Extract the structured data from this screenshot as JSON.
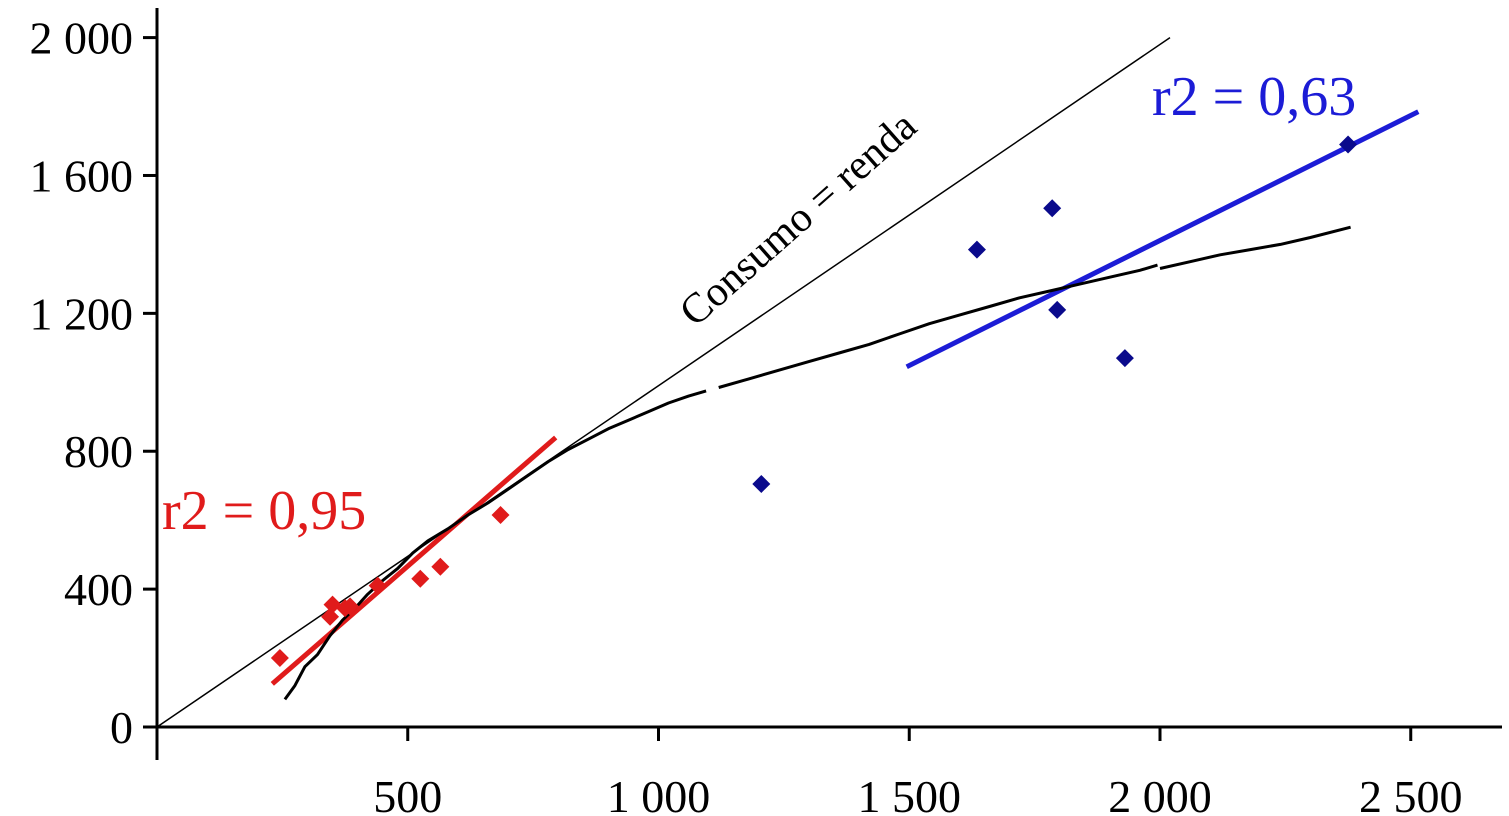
{
  "chart_data": {
    "type": "scatter",
    "title": "",
    "xlabel": "",
    "ylabel": "",
    "xlim": [
      0,
      2600
    ],
    "ylim": [
      0,
      2000
    ],
    "x_ticks": [
      500,
      1000,
      1500,
      2000,
      2500
    ],
    "x_tick_labels": [
      "500",
      "1 000",
      "1 500",
      "2 000",
      "2 500"
    ],
    "y_ticks": [
      0,
      400,
      800,
      1200,
      1600,
      2000
    ],
    "y_tick_labels": [
      "0",
      "400",
      "800",
      "1 200",
      "1 600",
      "2 000"
    ],
    "grid": false,
    "colors": {
      "red": "#e01b1b",
      "blue": "#1c1cd6",
      "navy": "#0a0a8c",
      "black": "#000000"
    },
    "series": [
      {
        "color": "#e01b1b",
        "marker": "diamond",
        "points": [
          [
            245,
            200
          ],
          [
            345,
            320
          ],
          [
            350,
            355
          ],
          [
            375,
            345
          ],
          [
            385,
            350
          ],
          [
            440,
            410
          ],
          [
            525,
            430
          ],
          [
            565,
            465
          ],
          [
            685,
            615
          ]
        ]
      },
      {
        "color": "#0a0a8c",
        "marker": "diamond",
        "points": [
          [
            1205,
            705
          ],
          [
            1635,
            1385
          ],
          [
            1785,
            1505
          ],
          [
            1795,
            1210
          ],
          [
            1930,
            1070
          ],
          [
            2375,
            1690
          ]
        ]
      }
    ],
    "lines": [
      {
        "name": "identity",
        "color": "#000000",
        "width": 1.5,
        "points": [
          [
            0,
            0
          ],
          [
            2020,
            2000
          ]
        ]
      },
      {
        "name": "fit-red",
        "color": "#e01b1b",
        "width": 5,
        "points": [
          [
            230,
            125
          ],
          [
            795,
            840
          ]
        ]
      },
      {
        "name": "fit-blue",
        "color": "#1c1cd6",
        "width": 5,
        "points": [
          [
            1495,
            1045
          ],
          [
            2515,
            1785
          ]
        ]
      },
      {
        "name": "curve-1",
        "color": "#000000",
        "width": 3,
        "points": [
          [
            255,
            80
          ],
          [
            275,
            120
          ],
          [
            295,
            175
          ],
          [
            320,
            210
          ],
          [
            345,
            265
          ],
          [
            370,
            310
          ],
          [
            395,
            345
          ],
          [
            420,
            385
          ],
          [
            450,
            425
          ],
          [
            480,
            460
          ],
          [
            510,
            505
          ],
          [
            540,
            540
          ],
          [
            580,
            575
          ],
          [
            620,
            615
          ],
          [
            660,
            650
          ],
          [
            700,
            690
          ],
          [
            740,
            730
          ],
          [
            780,
            770
          ],
          [
            820,
            805
          ],
          [
            860,
            835
          ],
          [
            900,
            865
          ],
          [
            940,
            890
          ],
          [
            980,
            915
          ],
          [
            1020,
            940
          ],
          [
            1060,
            960
          ],
          [
            1095,
            975
          ]
        ]
      },
      {
        "name": "curve-2",
        "color": "#000000",
        "width": 3,
        "points": [
          [
            1120,
            985
          ],
          [
            1180,
            1010
          ],
          [
            1240,
            1035
          ],
          [
            1300,
            1060
          ],
          [
            1360,
            1085
          ],
          [
            1420,
            1110
          ],
          [
            1480,
            1140
          ],
          [
            1540,
            1170
          ],
          [
            1600,
            1195
          ],
          [
            1660,
            1220
          ],
          [
            1720,
            1245
          ],
          [
            1780,
            1265
          ],
          [
            1840,
            1285
          ],
          [
            1900,
            1305
          ],
          [
            1960,
            1325
          ],
          [
            1995,
            1340
          ]
        ]
      },
      {
        "name": "curve-3",
        "color": "#000000",
        "width": 3,
        "points": [
          [
            2000,
            1330
          ],
          [
            2060,
            1350
          ],
          [
            2120,
            1370
          ],
          [
            2180,
            1385
          ],
          [
            2240,
            1400
          ],
          [
            2300,
            1420
          ],
          [
            2380,
            1450
          ]
        ]
      }
    ],
    "annotations": [
      {
        "name": "identity-label",
        "text": "Consumo = renda",
        "color": "#000000"
      },
      {
        "name": "r2-red",
        "text": "r2 = 0,95",
        "color": "#e01b1b"
      },
      {
        "name": "r2-blue",
        "text": "r2 = 0,63",
        "color": "#1c1cd6"
      }
    ]
  }
}
